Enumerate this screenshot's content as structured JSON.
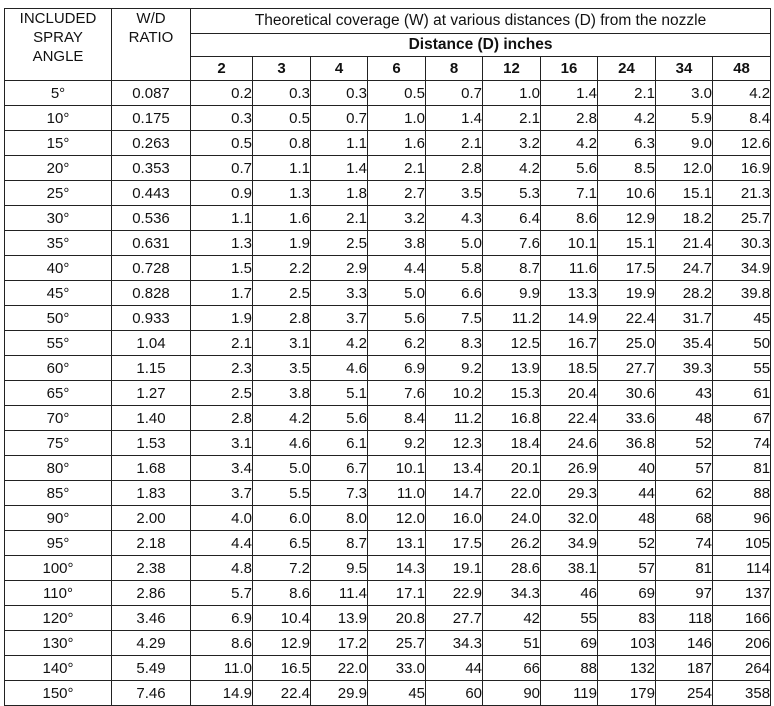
{
  "header": {
    "angle_label": [
      "INCLUDED",
      "SPRAY",
      "ANGLE"
    ],
    "ratio_label": [
      "W/D",
      "RATIO"
    ],
    "title": "Theoretical coverage (W) at various distances (D) from the nozzle",
    "subtitle": "Distance (D) inches",
    "distances": [
      "2",
      "3",
      "4",
      "6",
      "8",
      "12",
      "16",
      "24",
      "34",
      "48"
    ]
  },
  "rows": [
    {
      "angle": "5°",
      "ratio": "0.087",
      "values": [
        "0.2",
        "0.3",
        "0.3",
        "0.5",
        "0.7",
        "1.0",
        "1.4",
        "2.1",
        "3.0",
        "4.2"
      ]
    },
    {
      "angle": "10°",
      "ratio": "0.175",
      "values": [
        "0.3",
        "0.5",
        "0.7",
        "1.0",
        "1.4",
        "2.1",
        "2.8",
        "4.2",
        "5.9",
        "8.4"
      ]
    },
    {
      "angle": "15°",
      "ratio": "0.263",
      "values": [
        "0.5",
        "0.8",
        "1.1",
        "1.6",
        "2.1",
        "3.2",
        "4.2",
        "6.3",
        "9.0",
        "12.6"
      ]
    },
    {
      "angle": "20°",
      "ratio": "0.353",
      "values": [
        "0.7",
        "1.1",
        "1.4",
        "2.1",
        "2.8",
        "4.2",
        "5.6",
        "8.5",
        "12.0",
        "16.9"
      ]
    },
    {
      "angle": "25°",
      "ratio": "0.443",
      "values": [
        "0.9",
        "1.3",
        "1.8",
        "2.7",
        "3.5",
        "5.3",
        "7.1",
        "10.6",
        "15.1",
        "21.3"
      ]
    },
    {
      "angle": "30°",
      "ratio": "0.536",
      "values": [
        "1.1",
        "1.6",
        "2.1",
        "3.2",
        "4.3",
        "6.4",
        "8.6",
        "12.9",
        "18.2",
        "25.7"
      ]
    },
    {
      "angle": "35°",
      "ratio": "0.631",
      "values": [
        "1.3",
        "1.9",
        "2.5",
        "3.8",
        "5.0",
        "7.6",
        "10.1",
        "15.1",
        "21.4",
        "30.3"
      ]
    },
    {
      "angle": "40°",
      "ratio": "0.728",
      "values": [
        "1.5",
        "2.2",
        "2.9",
        "4.4",
        "5.8",
        "8.7",
        "11.6",
        "17.5",
        "24.7",
        "34.9"
      ]
    },
    {
      "angle": "45°",
      "ratio": "0.828",
      "values": [
        "1.7",
        "2.5",
        "3.3",
        "5.0",
        "6.6",
        "9.9",
        "13.3",
        "19.9",
        "28.2",
        "39.8"
      ]
    },
    {
      "angle": "50°",
      "ratio": "0.933",
      "values": [
        "1.9",
        "2.8",
        "3.7",
        "5.6",
        "7.5",
        "11.2",
        "14.9",
        "22.4",
        "31.7",
        "45"
      ]
    },
    {
      "angle": "55°",
      "ratio": "1.04",
      "values": [
        "2.1",
        "3.1",
        "4.2",
        "6.2",
        "8.3",
        "12.5",
        "16.7",
        "25.0",
        "35.4",
        "50"
      ]
    },
    {
      "angle": "60°",
      "ratio": "1.15",
      "values": [
        "2.3",
        "3.5",
        "4.6",
        "6.9",
        "9.2",
        "13.9",
        "18.5",
        "27.7",
        "39.3",
        "55"
      ]
    },
    {
      "angle": "65°",
      "ratio": "1.27",
      "values": [
        "2.5",
        "3.8",
        "5.1",
        "7.6",
        "10.2",
        "15.3",
        "20.4",
        "30.6",
        "43",
        "61"
      ]
    },
    {
      "angle": "70°",
      "ratio": "1.40",
      "values": [
        "2.8",
        "4.2",
        "5.6",
        "8.4",
        "11.2",
        "16.8",
        "22.4",
        "33.6",
        "48",
        "67"
      ]
    },
    {
      "angle": "75°",
      "ratio": "1.53",
      "values": [
        "3.1",
        "4.6",
        "6.1",
        "9.2",
        "12.3",
        "18.4",
        "24.6",
        "36.8",
        "52",
        "74"
      ]
    },
    {
      "angle": "80°",
      "ratio": "1.68",
      "values": [
        "3.4",
        "5.0",
        "6.7",
        "10.1",
        "13.4",
        "20.1",
        "26.9",
        "40",
        "57",
        "81"
      ]
    },
    {
      "angle": "85°",
      "ratio": "1.83",
      "values": [
        "3.7",
        "5.5",
        "7.3",
        "11.0",
        "14.7",
        "22.0",
        "29.3",
        "44",
        "62",
        "88"
      ]
    },
    {
      "angle": "90°",
      "ratio": "2.00",
      "values": [
        "4.0",
        "6.0",
        "8.0",
        "12.0",
        "16.0",
        "24.0",
        "32.0",
        "48",
        "68",
        "96"
      ]
    },
    {
      "angle": "95°",
      "ratio": "2.18",
      "values": [
        "4.4",
        "6.5",
        "8.7",
        "13.1",
        "17.5",
        "26.2",
        "34.9",
        "52",
        "74",
        "105"
      ]
    },
    {
      "angle": "100°",
      "ratio": "2.38",
      "values": [
        "4.8",
        "7.2",
        "9.5",
        "14.3",
        "19.1",
        "28.6",
        "38.1",
        "57",
        "81",
        "114"
      ]
    },
    {
      "angle": "110°",
      "ratio": "2.86",
      "values": [
        "5.7",
        "8.6",
        "11.4",
        "17.1",
        "22.9",
        "34.3",
        "46",
        "69",
        "97",
        "137"
      ]
    },
    {
      "angle": "120°",
      "ratio": "3.46",
      "values": [
        "6.9",
        "10.4",
        "13.9",
        "20.8",
        "27.7",
        "42",
        "55",
        "83",
        "118",
        "166"
      ]
    },
    {
      "angle": "130°",
      "ratio": "4.29",
      "values": [
        "8.6",
        "12.9",
        "17.2",
        "25.7",
        "34.3",
        "51",
        "69",
        "103",
        "146",
        "206"
      ]
    },
    {
      "angle": "140°",
      "ratio": "5.49",
      "values": [
        "11.0",
        "16.5",
        "22.0",
        "33.0",
        "44",
        "66",
        "88",
        "132",
        "187",
        "264"
      ]
    },
    {
      "angle": "150°",
      "ratio": "7.46",
      "values": [
        "14.9",
        "22.4",
        "29.9",
        "45",
        "60",
        "90",
        "119",
        "179",
        "254",
        "358"
      ]
    }
  ]
}
